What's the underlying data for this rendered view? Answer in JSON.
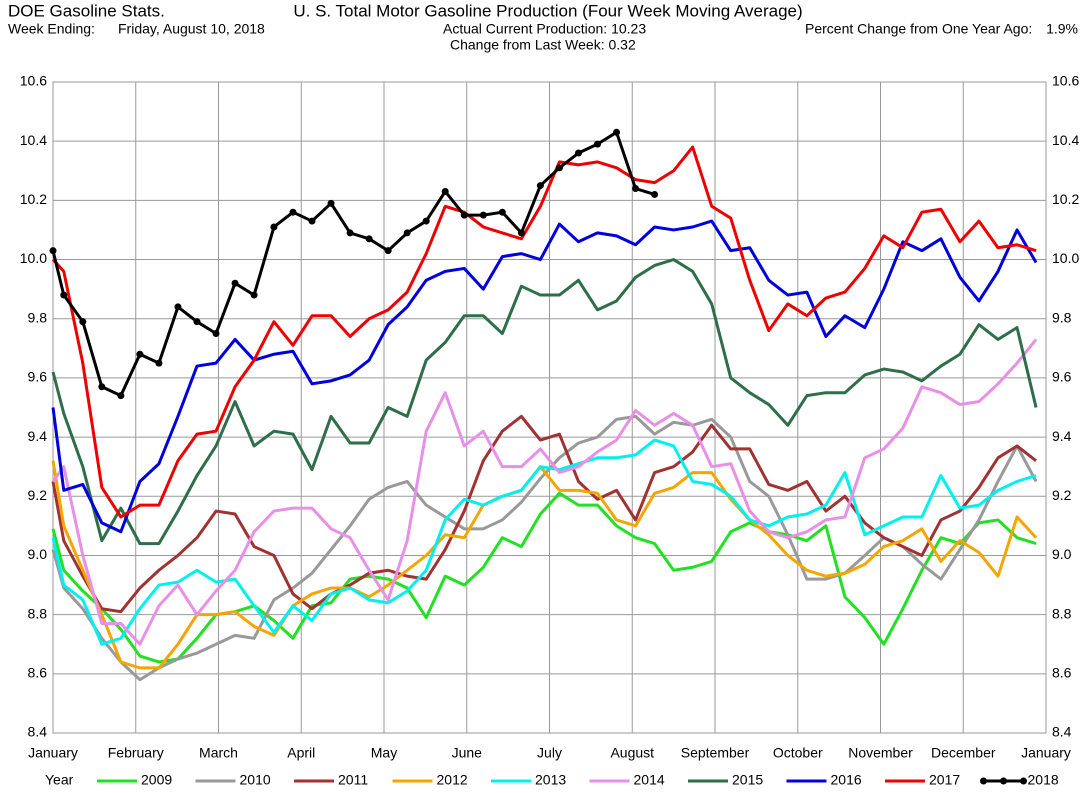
{
  "chart_data": {
    "type": "line",
    "header_left": "DOE Gasoline Stats.",
    "title": "U. S. Total Motor Gasoline Production (Four Week Moving Average)",
    "week_label": "Week Ending:",
    "week_date": "Friday, August 10, 2018",
    "current": "Actual Current Production: 10.23",
    "change": "Change from Last Week: 0.32",
    "pct_label": "Percent Change from One Year Ago:",
    "pct_value": "1.9%",
    "legend_title": "Year",
    "grid": true,
    "xlim": [
      0,
      12
    ],
    "xticks": [
      {
        "value": 0,
        "label": "January"
      },
      {
        "value": 1,
        "label": "February"
      },
      {
        "value": 2,
        "label": "March"
      },
      {
        "value": 3,
        "label": "April"
      },
      {
        "value": 4,
        "label": "May"
      },
      {
        "value": 5,
        "label": "June"
      },
      {
        "value": 6,
        "label": "July"
      },
      {
        "value": 7,
        "label": "August"
      },
      {
        "value": 8,
        "label": "September"
      },
      {
        "value": 9,
        "label": "October"
      },
      {
        "value": 10,
        "label": "November"
      },
      {
        "value": 11,
        "label": "December"
      },
      {
        "value": 12,
        "label": "January"
      }
    ],
    "ylim": [
      8.4,
      10.6
    ],
    "yticks": [
      8.4,
      8.6,
      8.8,
      {
        "value": 9.0,
        "label": "9.0"
      },
      9.2,
      9.4,
      9.6,
      9.8,
      {
        "value": 10.0,
        "label": "10.0"
      },
      10.2,
      10.4,
      10.6
    ],
    "x": [
      0,
      0.13,
      0.36,
      0.59,
      0.82,
      1.05,
      1.28,
      1.51,
      1.74,
      1.97,
      2.2,
      2.43,
      2.67,
      2.9,
      3.13,
      3.36,
      3.59,
      3.82,
      4.05,
      4.28,
      4.51,
      4.74,
      4.97,
      5.2,
      5.43,
      5.66,
      5.89,
      6.12,
      6.35,
      6.58,
      6.81,
      7.04,
      7.27,
      7.5,
      7.73,
      7.96,
      8.19,
      8.42,
      8.65,
      8.88,
      9.11,
      9.34,
      9.57,
      9.81,
      10.04,
      10.27,
      10.5,
      10.73,
      10.96,
      11.19,
      11.42,
      11.65,
      11.88
    ],
    "series": [
      {
        "name": "2009",
        "color": "#22e022",
        "values": [
          9.09,
          8.95,
          8.88,
          8.82,
          8.75,
          8.66,
          8.64,
          8.65,
          8.72,
          8.8,
          8.81,
          8.83,
          8.78,
          8.72,
          8.83,
          8.84,
          8.92,
          8.93,
          8.92,
          8.89,
          8.79,
          8.93,
          8.9,
          8.96,
          9.06,
          9.03,
          9.14,
          9.21,
          9.17,
          9.17,
          9.1,
          9.06,
          9.04,
          8.95,
          8.96,
          8.98,
          9.08,
          9.11,
          9.08,
          9.07,
          9.05,
          9.1,
          8.86,
          8.79,
          8.7,
          8.82,
          8.95,
          9.06,
          9.04,
          9.11,
          9.12,
          9.06,
          9.04
        ]
      },
      {
        "name": "2010",
        "color": "#999999",
        "values": [
          9.02,
          8.89,
          8.82,
          8.72,
          8.64,
          8.58,
          8.62,
          8.65,
          8.67,
          8.7,
          8.73,
          8.72,
          8.85,
          8.89,
          8.94,
          9.02,
          9.1,
          9.19,
          9.23,
          9.25,
          9.17,
          9.13,
          9.09,
          9.09,
          9.12,
          9.18,
          9.26,
          9.33,
          9.38,
          9.4,
          9.46,
          9.47,
          9.41,
          9.45,
          9.44,
          9.46,
          9.4,
          9.25,
          9.2,
          9.07,
          8.92,
          8.92,
          8.94,
          9.0,
          9.06,
          9.03,
          8.97,
          8.92,
          9.02,
          9.12,
          9.25,
          9.37,
          9.25
        ]
      },
      {
        "name": "2011",
        "color": "#a03232",
        "values": [
          9.25,
          9.05,
          8.93,
          8.82,
          8.81,
          8.89,
          8.95,
          9.0,
          9.06,
          9.15,
          9.14,
          9.03,
          9.0,
          8.87,
          8.82,
          8.87,
          8.9,
          8.94,
          8.95,
          8.93,
          8.92,
          9.02,
          9.15,
          9.32,
          9.42,
          9.47,
          9.39,
          9.41,
          9.25,
          9.19,
          9.22,
          9.12,
          9.28,
          9.3,
          9.35,
          9.44,
          9.36,
          9.36,
          9.24,
          9.22,
          9.25,
          9.15,
          9.2,
          9.11,
          9.06,
          9.03,
          9.0,
          9.12,
          9.15,
          9.23,
          9.33,
          9.37,
          9.32
        ]
      },
      {
        "name": "2012",
        "color": "#f5a500",
        "values": [
          9.32,
          9.1,
          8.95,
          8.8,
          8.64,
          8.62,
          8.62,
          8.7,
          8.8,
          8.8,
          8.81,
          8.76,
          8.73,
          8.83,
          8.87,
          8.89,
          8.89,
          8.86,
          8.9,
          8.95,
          9.0,
          9.07,
          9.06,
          9.17,
          9.2,
          9.22,
          9.3,
          9.22,
          9.22,
          9.21,
          9.12,
          9.1,
          9.21,
          9.23,
          9.28,
          9.28,
          9.19,
          9.12,
          9.07,
          9.0,
          8.95,
          8.93,
          8.94,
          8.97,
          9.03,
          9.05,
          9.09,
          8.98,
          9.05,
          9.01,
          8.93,
          9.13,
          9.06
        ]
      },
      {
        "name": "2013",
        "color": "#00f0f0",
        "values": [
          9.06,
          8.9,
          8.85,
          8.7,
          8.72,
          8.82,
          8.9,
          8.91,
          8.95,
          8.91,
          8.92,
          8.83,
          8.74,
          8.83,
          8.78,
          8.87,
          8.89,
          8.85,
          8.84,
          8.88,
          8.95,
          9.12,
          9.19,
          9.17,
          9.2,
          9.22,
          9.3,
          9.29,
          9.31,
          9.33,
          9.33,
          9.34,
          9.39,
          9.37,
          9.25,
          9.24,
          9.2,
          9.12,
          9.1,
          9.13,
          9.14,
          9.17,
          9.28,
          9.07,
          9.1,
          9.13,
          9.13,
          9.27,
          9.16,
          9.17,
          9.22,
          9.25,
          9.27
        ]
      },
      {
        "name": "2014",
        "color": "#e890e8",
        "values": [
          9.25,
          9.3,
          9.0,
          8.77,
          8.77,
          8.7,
          8.83,
          8.9,
          8.8,
          8.88,
          8.95,
          9.08,
          9.15,
          9.16,
          9.16,
          9.09,
          9.06,
          8.95,
          8.85,
          9.05,
          9.42,
          9.55,
          9.37,
          9.42,
          9.3,
          9.3,
          9.36,
          9.28,
          9.3,
          9.35,
          9.39,
          9.49,
          9.44,
          9.48,
          9.44,
          9.3,
          9.31,
          9.15,
          9.08,
          9.06,
          9.08,
          9.12,
          9.13,
          9.33,
          9.36,
          9.43,
          9.57,
          9.55,
          9.51,
          9.52,
          9.58,
          9.65,
          9.73
        ]
      },
      {
        "name": "2015",
        "color": "#2e6e4a",
        "values": [
          9.62,
          9.48,
          9.3,
          9.05,
          9.16,
          9.04,
          9.04,
          9.15,
          9.27,
          9.37,
          9.52,
          9.37,
          9.42,
          9.41,
          9.29,
          9.47,
          9.38,
          9.38,
          9.5,
          9.47,
          9.66,
          9.72,
          9.81,
          9.81,
          9.75,
          9.91,
          9.88,
          9.88,
          9.93,
          9.83,
          9.86,
          9.94,
          9.98,
          10.0,
          9.96,
          9.85,
          9.6,
          9.55,
          9.51,
          9.44,
          9.54,
          9.55,
          9.55,
          9.61,
          9.63,
          9.62,
          9.59,
          9.64,
          9.68,
          9.78,
          9.73,
          9.77,
          9.5
        ]
      },
      {
        "name": "2016",
        "color": "#0000dd",
        "values": [
          9.5,
          9.22,
          9.24,
          9.11,
          9.08,
          9.25,
          9.31,
          9.47,
          9.64,
          9.65,
          9.73,
          9.66,
          9.68,
          9.69,
          9.58,
          9.59,
          9.61,
          9.66,
          9.78,
          9.84,
          9.93,
          9.96,
          9.97,
          9.9,
          10.01,
          10.02,
          10.0,
          10.12,
          10.06,
          10.09,
          10.08,
          10.05,
          10.11,
          10.1,
          10.11,
          10.13,
          10.03,
          10.04,
          9.93,
          9.88,
          9.89,
          9.74,
          9.81,
          9.77,
          9.9,
          10.06,
          10.03,
          10.07,
          9.94,
          9.86,
          9.96,
          10.1,
          9.99
        ]
      },
      {
        "name": "2017",
        "color": "#ee0000",
        "values": [
          10.0,
          9.96,
          9.65,
          9.23,
          9.13,
          9.17,
          9.17,
          9.32,
          9.41,
          9.42,
          9.57,
          9.66,
          9.79,
          9.71,
          9.81,
          9.81,
          9.74,
          9.8,
          9.83,
          9.89,
          10.02,
          10.18,
          10.16,
          10.11,
          10.09,
          10.07,
          10.18,
          10.33,
          10.32,
          10.33,
          10.31,
          10.27,
          10.26,
          10.3,
          10.38,
          10.18,
          10.14,
          9.93,
          9.76,
          9.85,
          9.81,
          9.87,
          9.89,
          9.97,
          10.08,
          10.04,
          10.16,
          10.17,
          10.06,
          10.13,
          10.04,
          10.05,
          10.03
        ]
      },
      {
        "name": "2018",
        "color": "#000000",
        "marker": "circle",
        "values": [
          10.03,
          9.88,
          9.79,
          9.57,
          9.54,
          9.68,
          9.65,
          9.84,
          9.79,
          9.75,
          9.92,
          9.88,
          10.11,
          10.16,
          10.13,
          10.19,
          10.09,
          10.07,
          10.03,
          10.09,
          10.13,
          10.23,
          10.15,
          10.15,
          10.16,
          10.09,
          10.25,
          10.31,
          10.36,
          10.39,
          10.43,
          10.24,
          10.22,
          null,
          null,
          null,
          null,
          null,
          null,
          null,
          null,
          null,
          null,
          null,
          null,
          null,
          null,
          null,
          null,
          null,
          null,
          null,
          null
        ]
      }
    ]
  }
}
